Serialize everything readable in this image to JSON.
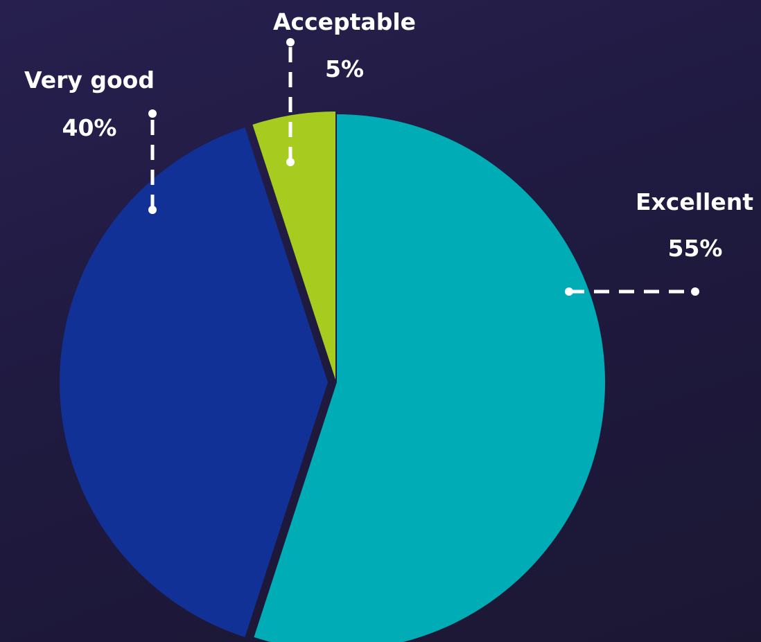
{
  "chart_data": {
    "type": "pie",
    "slices": [
      {
        "name": "Excellent",
        "value": 55,
        "value_label": "55%",
        "color": "#00acb6"
      },
      {
        "name": "Very good",
        "value": 40,
        "value_label": "40%",
        "color": "#113197"
      },
      {
        "name": "Acceptable",
        "value": 5,
        "value_label": "5%",
        "color": "#a7cc1f"
      }
    ],
    "exploded": true,
    "leader_lines": "dashed-white",
    "background": "#211c43"
  }
}
